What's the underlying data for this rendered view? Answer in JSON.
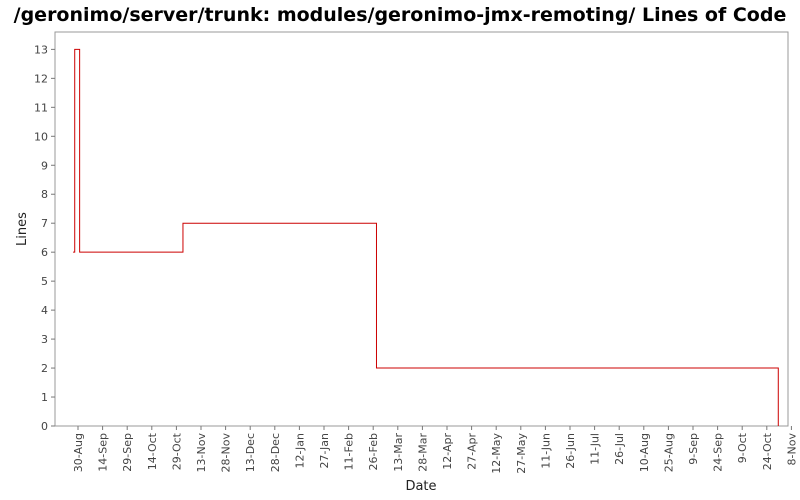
{
  "chart_data": {
    "type": "line",
    "title": "/geronimo/server/trunk: modules/geronimo-jmx-remoting/ Lines of Code",
    "xlabel": "Date",
    "ylabel": "Lines",
    "ylim": [
      0,
      13.6
    ],
    "y_ticks": [
      0,
      1,
      2,
      3,
      4,
      5,
      6,
      7,
      8,
      9,
      10,
      11,
      12,
      13
    ],
    "x_ticks": [
      "30-Aug",
      "14-Sep",
      "29-Sep",
      "14-Oct",
      "29-Oct",
      "13-Nov",
      "28-Nov",
      "13-Dec",
      "28-Dec",
      "12-Jan",
      "27-Jan",
      "11-Feb",
      "26-Feb",
      "13-Mar",
      "28-Mar",
      "12-Apr",
      "27-Apr",
      "12-May",
      "27-May",
      "11-Jun",
      "26-Jun",
      "11-Jul",
      "26-Jul",
      "10-Aug",
      "25-Aug",
      "9-Sep",
      "24-Sep",
      "9-Oct",
      "24-Oct",
      "8-Nov"
    ],
    "step": true,
    "grid": false,
    "line_color": "#cc0000",
    "series": [
      {
        "points": [
          {
            "x": "27-Aug",
            "y": 6
          },
          {
            "x": "28-Aug",
            "y": 13
          },
          {
            "x": "31-Aug",
            "y": 6
          },
          {
            "x": "2-Nov",
            "y": 7
          },
          {
            "x": "28-Feb",
            "y": 2
          },
          {
            "x": "31-Oct",
            "y": 0
          }
        ]
      }
    ]
  }
}
